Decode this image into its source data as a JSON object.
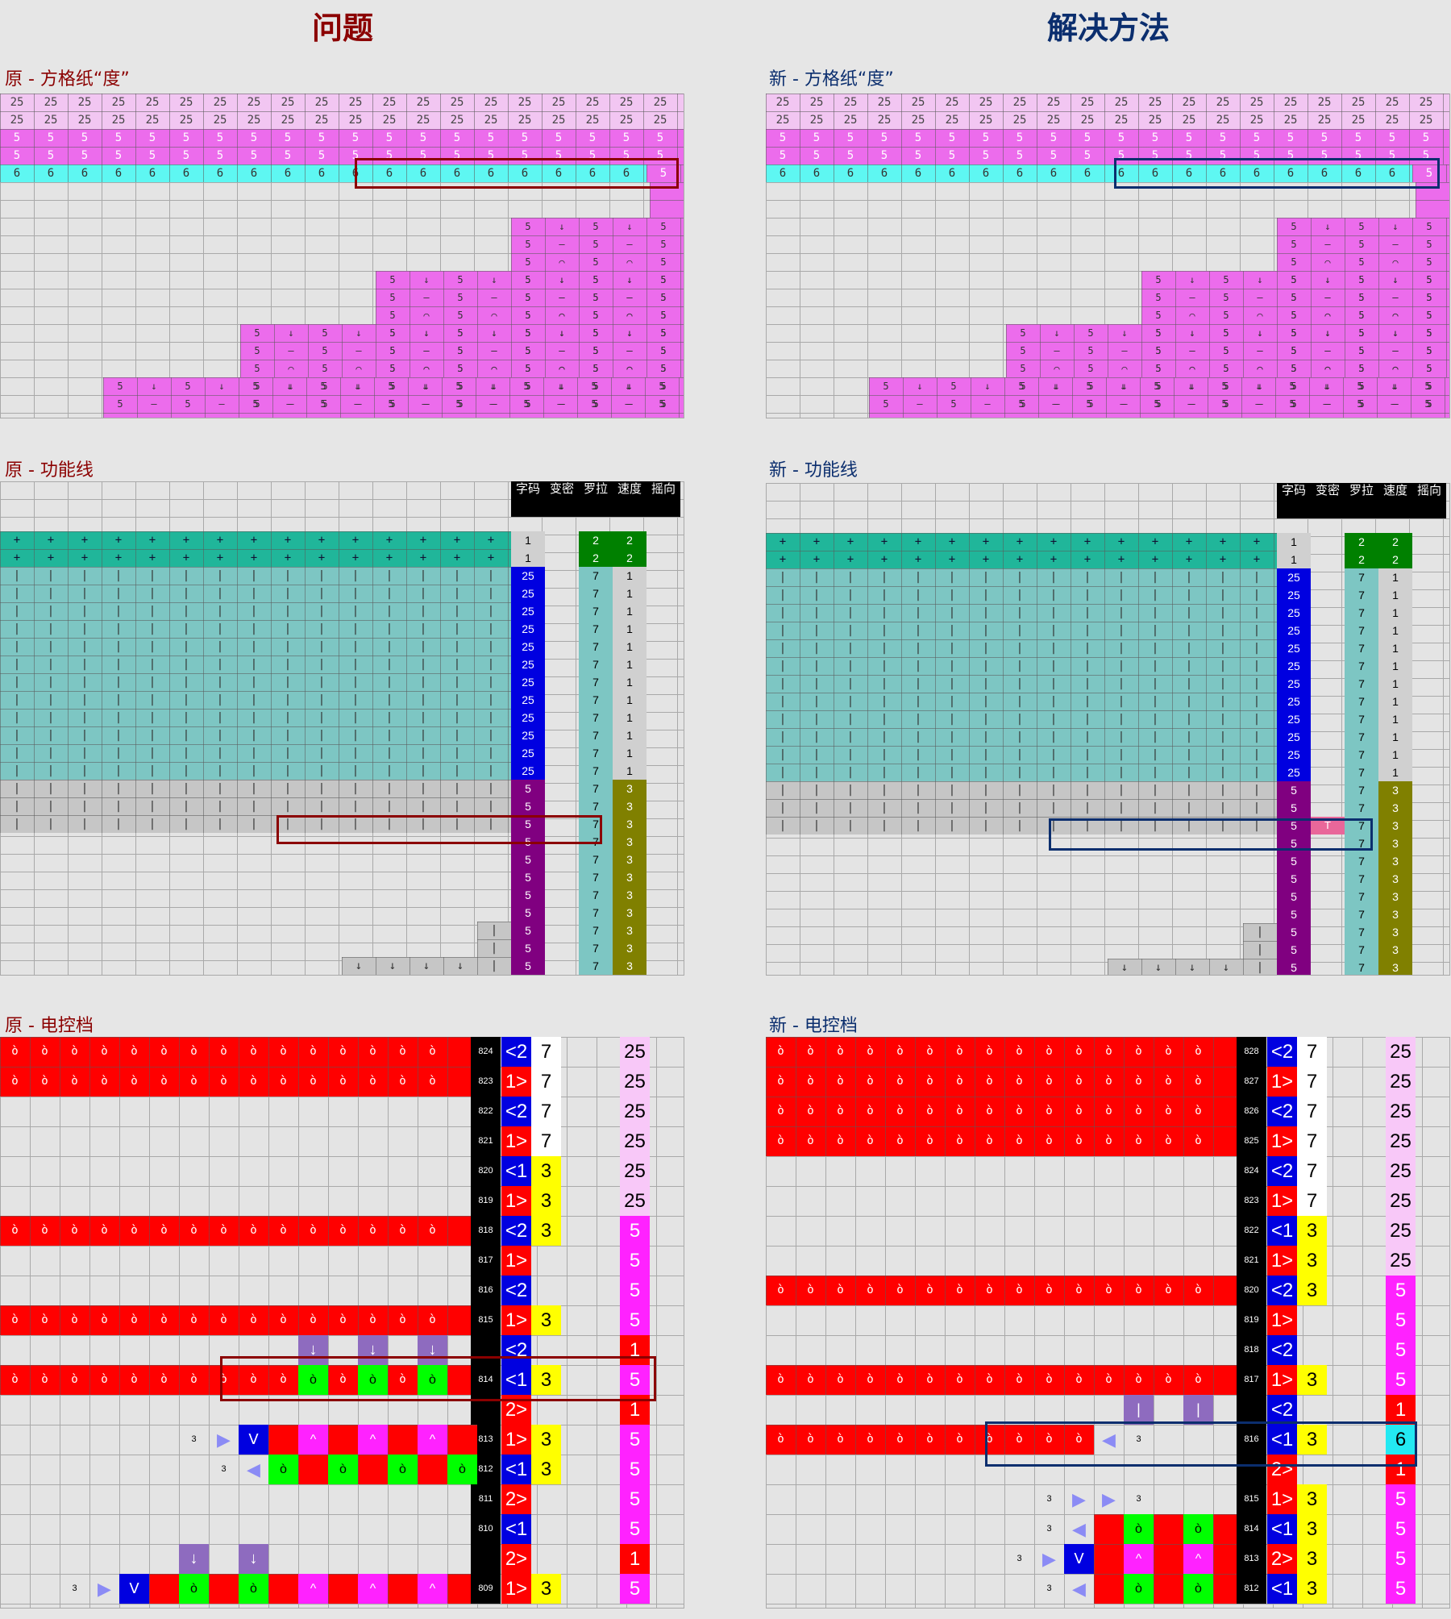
{
  "titles": {
    "problem": "问题",
    "solution": "解决方法"
  },
  "colors": {
    "problem": "#8b0000",
    "solution": "#0b2e6e",
    "pink": "#ec6cec",
    "cyan": "#5ef7f2",
    "teal": "#20b69a",
    "tealLight": "#7dc6c3",
    "gray": "#c6c6c6",
    "blue": "#0000e0",
    "purple": "#800080",
    "green": "#008000",
    "olive": "#808000",
    "red": "#ff0000",
    "black": "#000000",
    "yellow": "#ffff00",
    "magenta": "#ff22ff",
    "lime": "#00ff00"
  },
  "left": {
    "sq_title": "原 - 方格纸“度”",
    "fl_title": "原 - 功能线",
    "ec_title": "原 - 电控档",
    "headers": [
      "字码",
      "变密",
      "罗拉",
      "速度",
      "摇向"
    ],
    "fl_rows": [
      {
        "code": "1",
        "roller": "2",
        "speed": "2"
      },
      {
        "code": "1",
        "roller": "2",
        "speed": "2"
      },
      {
        "code": "25",
        "roller": "7",
        "speed": "1"
      },
      {
        "code": "25",
        "roller": "7",
        "speed": "1"
      },
      {
        "code": "25",
        "roller": "7",
        "speed": "1"
      },
      {
        "code": "25",
        "roller": "7",
        "speed": "1"
      },
      {
        "code": "25",
        "roller": "7",
        "speed": "1"
      },
      {
        "code": "25",
        "roller": "7",
        "speed": "1"
      },
      {
        "code": "25",
        "roller": "7",
        "speed": "1"
      },
      {
        "code": "25",
        "roller": "7",
        "speed": "1"
      },
      {
        "code": "25",
        "roller": "7",
        "speed": "1"
      },
      {
        "code": "25",
        "roller": "7",
        "speed": "1"
      },
      {
        "code": "25",
        "roller": "7",
        "speed": "1"
      },
      {
        "code": "25",
        "roller": "7",
        "speed": "1"
      },
      {
        "code": "5",
        "roller": "7",
        "speed": "3"
      },
      {
        "code": "5",
        "roller": "7",
        "speed": "3"
      },
      {
        "code": "5",
        "roller": "7",
        "speed": "3"
      },
      {
        "code": "5",
        "roller": "7",
        "speed": "3"
      },
      {
        "code": "5",
        "roller": "7",
        "speed": "3"
      },
      {
        "code": "5",
        "roller": "7",
        "speed": "3"
      },
      {
        "code": "5",
        "roller": "7",
        "speed": "3"
      },
      {
        "code": "5",
        "roller": "7",
        "speed": "3"
      },
      {
        "code": "5",
        "roller": "7",
        "speed": "3"
      },
      {
        "code": "5",
        "roller": "7",
        "speed": "3"
      },
      {
        "code": "5",
        "roller": "7",
        "speed": "3"
      }
    ],
    "ec_rows": [
      {
        "num": "824",
        "dir": "<2",
        "d": "7",
        "v": "25"
      },
      {
        "num": "823",
        "dir": "1>",
        "d": "7",
        "v": "25"
      },
      {
        "num": "822",
        "dir": "<2",
        "d": "7",
        "v": "25"
      },
      {
        "num": "821",
        "dir": "1>",
        "d": "7",
        "v": "25"
      },
      {
        "num": "820",
        "dir": "<1",
        "d": "3",
        "v": "25"
      },
      {
        "num": "819",
        "dir": "1>",
        "d": "3",
        "v": "25"
      },
      {
        "num": "818",
        "dir": "<2",
        "d": "3",
        "v": "5"
      },
      {
        "num": "817",
        "dir": "1>",
        "d": "",
        "v": "5"
      },
      {
        "num": "816",
        "dir": "<2",
        "d": "",
        "v": "5"
      },
      {
        "num": "815",
        "dir": "1>",
        "d": "3",
        "v": "5"
      },
      {
        "num": "",
        "dir": "<2",
        "d": "",
        "v": "1"
      },
      {
        "num": "814",
        "dir": "<1",
        "d": "3",
        "v": "5"
      },
      {
        "num": "",
        "dir": "2>",
        "d": "",
        "v": "1"
      },
      {
        "num": "813",
        "dir": "1>",
        "d": "3",
        "v": "5"
      },
      {
        "num": "812",
        "dir": "<1",
        "d": "3",
        "v": "5"
      },
      {
        "num": "811",
        "dir": "2>",
        "d": "",
        "v": "5"
      },
      {
        "num": "810",
        "dir": "<1",
        "d": "",
        "v": "5"
      },
      {
        "num": "",
        "dir": "2>",
        "d": "",
        "v": "1"
      },
      {
        "num": "809",
        "dir": "1>",
        "d": "3",
        "v": "5"
      }
    ]
  },
  "right": {
    "sq_title": "新 - 方格纸“度”",
    "fl_title": "新 - 功能线",
    "ec_title": "新 - 电控档",
    "headers": [
      "字码",
      "变密",
      "罗拉",
      "速度",
      "摇向"
    ],
    "t_marker": "T",
    "fl_rows": [
      {
        "code": "1",
        "roller": "2",
        "speed": "2"
      },
      {
        "code": "1",
        "roller": "2",
        "speed": "2"
      },
      {
        "code": "25",
        "roller": "7",
        "speed": "1"
      },
      {
        "code": "25",
        "roller": "7",
        "speed": "1"
      },
      {
        "code": "25",
        "roller": "7",
        "speed": "1"
      },
      {
        "code": "25",
        "roller": "7",
        "speed": "1"
      },
      {
        "code": "25",
        "roller": "7",
        "speed": "1"
      },
      {
        "code": "25",
        "roller": "7",
        "speed": "1"
      },
      {
        "code": "25",
        "roller": "7",
        "speed": "1"
      },
      {
        "code": "25",
        "roller": "7",
        "speed": "1"
      },
      {
        "code": "25",
        "roller": "7",
        "speed": "1"
      },
      {
        "code": "25",
        "roller": "7",
        "speed": "1"
      },
      {
        "code": "25",
        "roller": "7",
        "speed": "1"
      },
      {
        "code": "25",
        "roller": "7",
        "speed": "1"
      },
      {
        "code": "5",
        "roller": "7",
        "speed": "3"
      },
      {
        "code": "5",
        "roller": "7",
        "speed": "3"
      },
      {
        "code": "5",
        "roller": "7",
        "speed": "3"
      },
      {
        "code": "5",
        "roller": "7",
        "speed": "3"
      },
      {
        "code": "5",
        "roller": "7",
        "speed": "3"
      },
      {
        "code": "5",
        "roller": "7",
        "speed": "3"
      },
      {
        "code": "5",
        "roller": "7",
        "speed": "3"
      },
      {
        "code": "5",
        "roller": "7",
        "speed": "3"
      },
      {
        "code": "5",
        "roller": "7",
        "speed": "3"
      },
      {
        "code": "5",
        "roller": "7",
        "speed": "3"
      },
      {
        "code": "5",
        "roller": "7",
        "speed": "3"
      }
    ],
    "ec_rows": [
      {
        "num": "828",
        "dir": "<2",
        "d": "7",
        "v": "25"
      },
      {
        "num": "827",
        "dir": "1>",
        "d": "7",
        "v": "25"
      },
      {
        "num": "826",
        "dir": "<2",
        "d": "7",
        "v": "25"
      },
      {
        "num": "825",
        "dir": "1>",
        "d": "7",
        "v": "25"
      },
      {
        "num": "824",
        "dir": "<2",
        "d": "7",
        "v": "25"
      },
      {
        "num": "823",
        "dir": "1>",
        "d": "7",
        "v": "25"
      },
      {
        "num": "822",
        "dir": "<1",
        "d": "3",
        "v": "25"
      },
      {
        "num": "821",
        "dir": "1>",
        "d": "3",
        "v": "25"
      },
      {
        "num": "820",
        "dir": "<2",
        "d": "3",
        "v": "5"
      },
      {
        "num": "819",
        "dir": "1>",
        "d": "",
        "v": "5"
      },
      {
        "num": "818",
        "dir": "<2",
        "d": "",
        "v": "5"
      },
      {
        "num": "817",
        "dir": "1>",
        "d": "3",
        "v": "5"
      },
      {
        "num": "",
        "dir": "<2",
        "d": "",
        "v": "1"
      },
      {
        "num": "816",
        "dir": "<1",
        "d": "3",
        "v": "6"
      },
      {
        "num": "",
        "dir": "2>",
        "d": "",
        "v": "1"
      },
      {
        "num": "815",
        "dir": "1>",
        "d": "3",
        "v": "5"
      },
      {
        "num": "814",
        "dir": "<1",
        "d": "3",
        "v": "5"
      },
      {
        "num": "813",
        "dir": "2>",
        "d": "3",
        "v": "5"
      },
      {
        "num": "812",
        "dir": "<1",
        "d": "3",
        "v": "5"
      }
    ]
  },
  "marks": {
    "tick": "|",
    "plus": "+",
    "down": "↓",
    "loop": "ò",
    "small3": "3",
    "v25": "25",
    "v5": "5",
    "v6": "6"
  }
}
